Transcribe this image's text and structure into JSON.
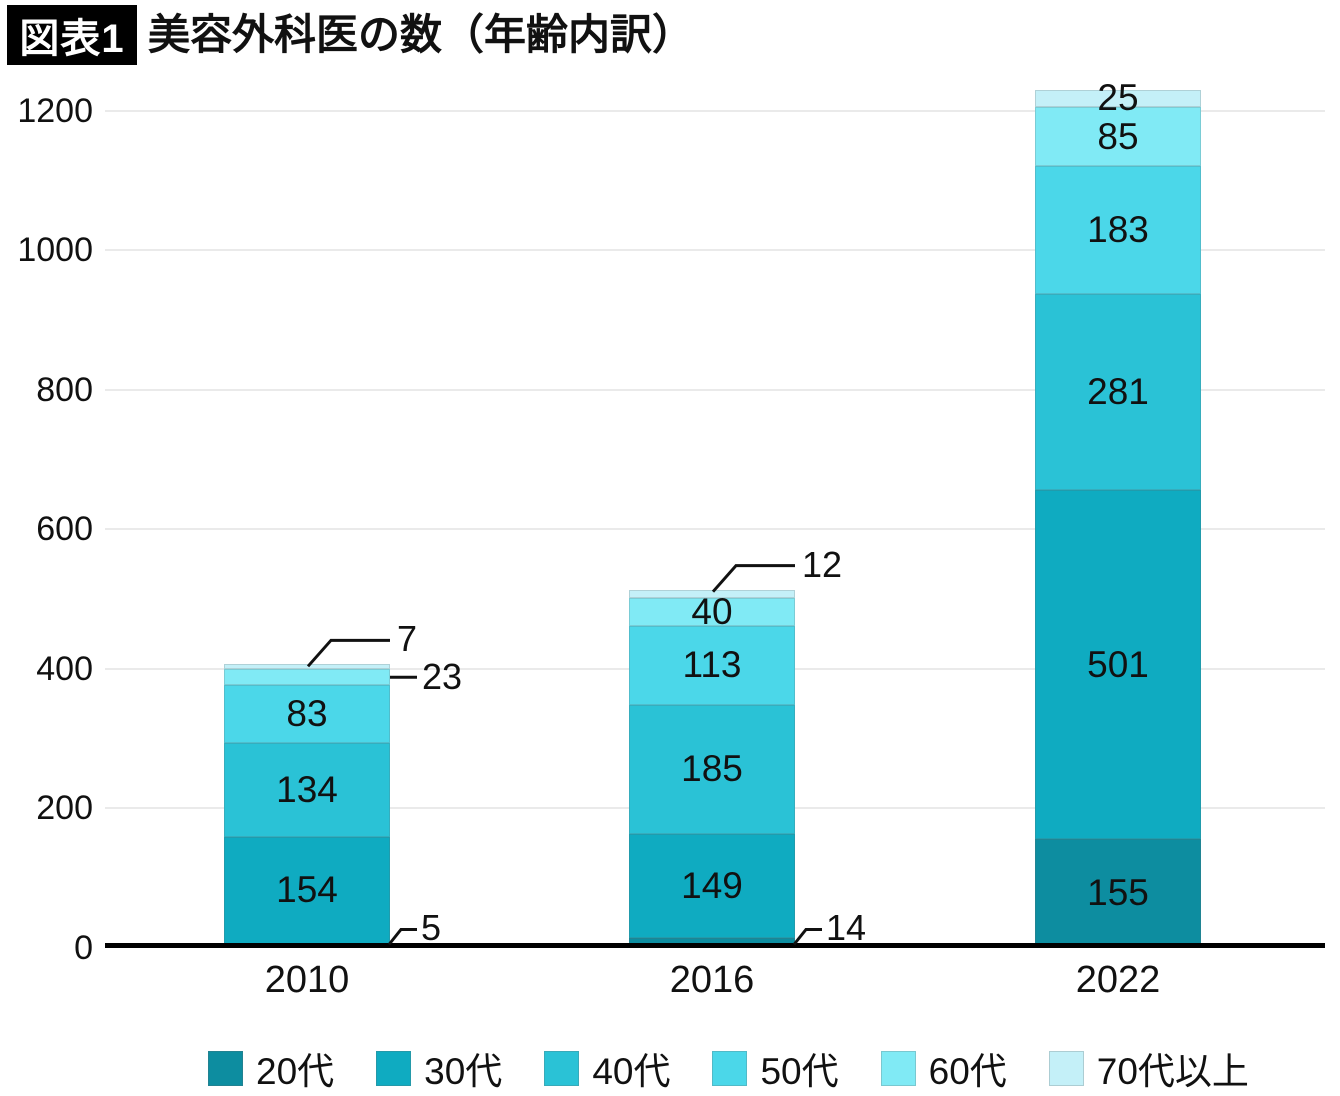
{
  "header": {
    "badge": "図表1",
    "title": "美容外科医の数（年齢内訳）"
  },
  "chart_data": {
    "type": "bar",
    "subtype": "stacked",
    "title": "美容外科医の数（年齢内訳）",
    "categories": [
      "2010",
      "2016",
      "2022"
    ],
    "series": [
      {
        "name": "20代",
        "color": "#0d8da0",
        "values": [
          5,
          14,
          155
        ]
      },
      {
        "name": "30代",
        "color": "#0fabc1",
        "values": [
          154,
          149,
          501
        ]
      },
      {
        "name": "40代",
        "color": "#2ac2d6",
        "values": [
          134,
          185,
          281
        ]
      },
      {
        "name": "50代",
        "color": "#4bd7e9",
        "values": [
          83,
          113,
          183
        ]
      },
      {
        "name": "60代",
        "color": "#80eaf5",
        "values": [
          23,
          40,
          85
        ]
      },
      {
        "name": "70代以上",
        "color": "#c4f0f8",
        "values": [
          7,
          12,
          25
        ]
      }
    ],
    "totals": [
      406,
      513,
      1230
    ],
    "xlabel": "",
    "ylabel": "",
    "ylim": [
      0,
      1230
    ],
    "yticks": [
      0,
      200,
      400,
      600,
      800,
      1000,
      1200
    ],
    "grid": true,
    "legend_position": "bottom",
    "callouts": [
      {
        "category_index": 0,
        "series_index": 5,
        "style": "top"
      },
      {
        "category_index": 0,
        "series_index": 4,
        "style": "side"
      },
      {
        "category_index": 0,
        "series_index": 0,
        "style": "bottom"
      },
      {
        "category_index": 1,
        "series_index": 5,
        "style": "top"
      },
      {
        "category_index": 1,
        "series_index": 0,
        "style": "bottom"
      }
    ]
  }
}
